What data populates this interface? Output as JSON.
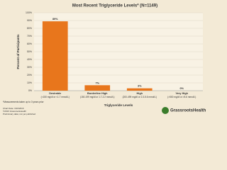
{
  "chart_data": {
    "type": "bar",
    "title": "Most Recent Triglyceride Levels* (N=1149)",
    "categories": [
      [
        "Desirable",
        "(<150 mg/dl or <1.7 mmol/L)"
      ],
      [
        "Borderline High",
        "(150-199 mg/dl or 1.7-2.2 mmol/L)"
      ],
      [
        "High",
        "(200-499 mg/dl or 2.3-5.6 mmol/L)"
      ],
      [
        "Very High",
        "(>500 mg/dl or >5.6 mmol/L)"
      ]
    ],
    "values": [
      89,
      7,
      3,
      0
    ],
    "value_labels": [
      "89%",
      "7%",
      "3%",
      "0%"
    ],
    "color": "#e8761c",
    "ylim": [
      0,
      100
    ],
    "yticks": [
      {
        "value": 0,
        "label": "0%"
      },
      {
        "value": 10,
        "label": "10%"
      },
      {
        "value": 20,
        "label": "20%"
      },
      {
        "value": 30,
        "label": "30%"
      },
      {
        "value": 40,
        "label": "40%"
      },
      {
        "value": 50,
        "label": "50%"
      },
      {
        "value": 60,
        "label": "60%"
      },
      {
        "value": 70,
        "label": "70%"
      },
      {
        "value": 80,
        "label": "80%"
      },
      {
        "value": 90,
        "label": "90%"
      },
      {
        "value": 100,
        "label": "100%"
      }
    ],
    "grid": true,
    "x_label": "Triglyceride Levels",
    "y_label": "Percent of Participants",
    "footnotes": [
      "*Measurements taken up to 3 years prior",
      "Chart Date: 3/16/2016",
      "©2016 GrassrootsHealth",
      "Preliminary data; not yet published"
    ],
    "logo": "GrassrootsHealth"
  }
}
